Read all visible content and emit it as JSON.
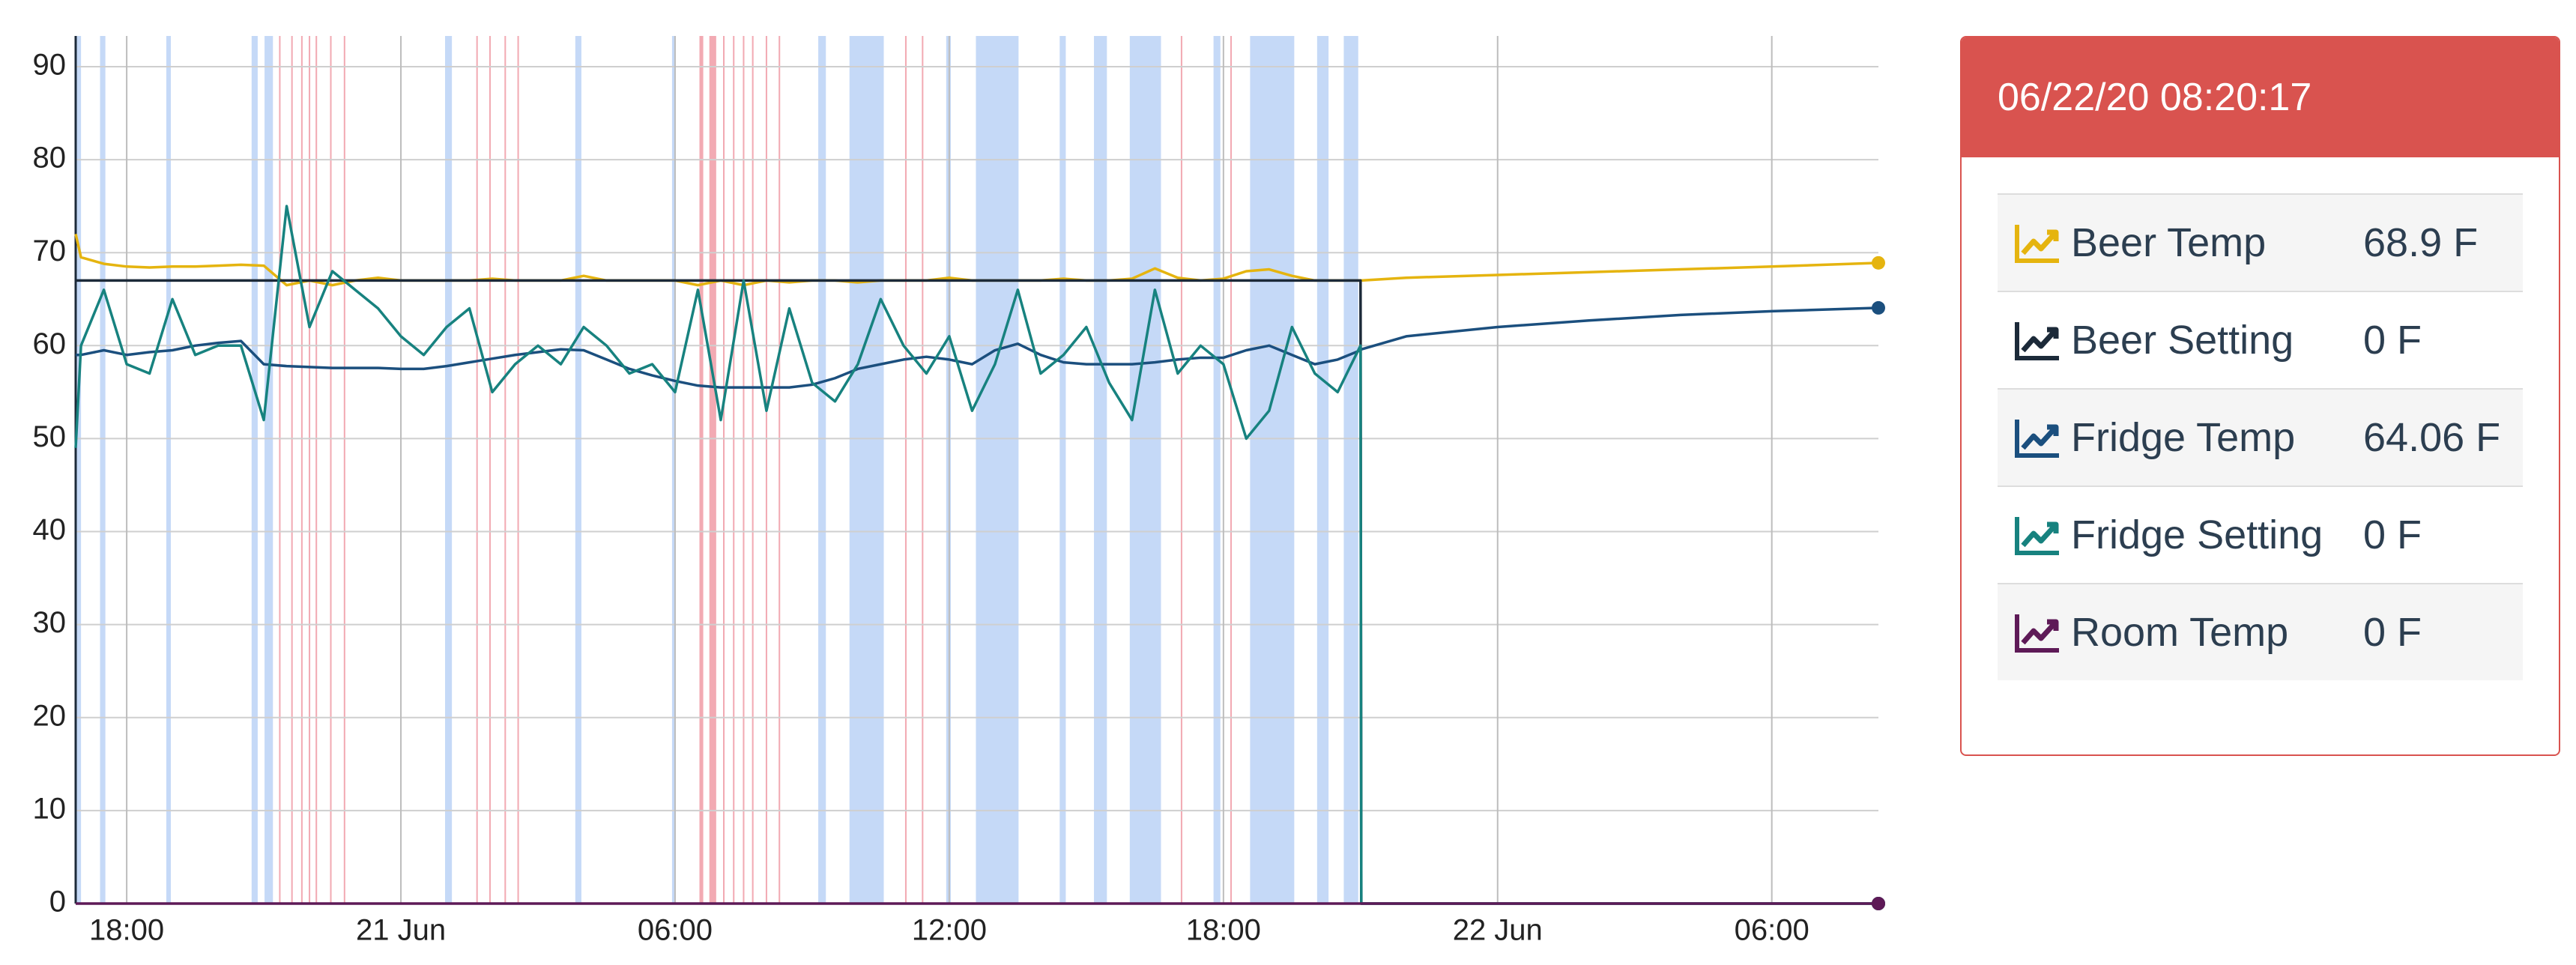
{
  "chart_data": {
    "type": "line",
    "x": [
      "20 Jun 16:53",
      "20 Jun 17:00",
      "20 Jun 17:30",
      "20 Jun 18:00",
      "20 Jun 18:30",
      "20 Jun 19:00",
      "20 Jun 19:30",
      "20 Jun 20:00",
      "20 Jun 20:30",
      "20 Jun 21:00",
      "20 Jun 21:30",
      "20 Jun 22:00",
      "20 Jun 22:30",
      "20 Jun 23:00",
      "20 Jun 23:30",
      "21 Jun 00:00",
      "21 Jun 00:30",
      "21 Jun 01:00",
      "21 Jun 01:30",
      "21 Jun 02:00",
      "21 Jun 02:30",
      "21 Jun 03:00",
      "21 Jun 03:30",
      "21 Jun 04:00",
      "21 Jun 04:30",
      "21 Jun 05:00",
      "21 Jun 05:30",
      "21 Jun 06:00",
      "21 Jun 06:30",
      "21 Jun 07:00",
      "21 Jun 07:30",
      "21 Jun 08:00",
      "21 Jun 08:30",
      "21 Jun 09:00",
      "21 Jun 09:30",
      "21 Jun 10:00",
      "21 Jun 10:30",
      "21 Jun 11:00",
      "21 Jun 11:30",
      "21 Jun 12:00",
      "21 Jun 12:30",
      "21 Jun 13:00",
      "21 Jun 13:30",
      "21 Jun 14:00",
      "21 Jun 14:30",
      "21 Jun 15:00",
      "21 Jun 15:30",
      "21 Jun 16:00",
      "21 Jun 16:30",
      "21 Jun 17:00",
      "21 Jun 17:30",
      "21 Jun 18:00",
      "21 Jun 18:30",
      "21 Jun 19:00",
      "21 Jun 19:30",
      "21 Jun 20:00",
      "21 Jun 20:30",
      "21 Jun 21:00",
      "21 Jun 21:01",
      "21 Jun 22:00",
      "22 Jun 00:00",
      "22 Jun 02:00",
      "22 Jun 04:00",
      "22 Jun 06:00",
      "22 Jun 08:20"
    ],
    "series": [
      {
        "name": "Beer Temp",
        "color": "#e5b40f",
        "values": [
          72,
          69.5,
          68.8,
          68.5,
          68.4,
          68.5,
          68.5,
          68.6,
          68.7,
          68.6,
          66.5,
          67,
          66.5,
          67,
          67.3,
          67,
          67,
          67,
          67,
          67.2,
          67,
          67,
          67,
          67.5,
          67,
          67,
          67,
          67,
          66.5,
          67,
          66.5,
          67,
          66.8,
          67,
          67,
          66.8,
          67,
          67,
          67,
          67.3,
          67,
          67,
          67,
          67,
          67.2,
          67,
          67,
          67.2,
          68.3,
          67.3,
          67,
          67.2,
          68,
          68.2,
          67.5,
          67,
          67,
          67,
          67,
          67.3,
          67.6,
          67.9,
          68.2,
          68.5,
          68.9
        ]
      },
      {
        "name": "Beer Setting",
        "color": "#1c2a39",
        "values": [
          67,
          67,
          67,
          67,
          67,
          67,
          67,
          67,
          67,
          67,
          67,
          67,
          67,
          67,
          67,
          67,
          67,
          67,
          67,
          67,
          67,
          67,
          67,
          67,
          67,
          67,
          67,
          67,
          67,
          67,
          67,
          67,
          67,
          67,
          67,
          67,
          67,
          67,
          67,
          67,
          67,
          67,
          67,
          67,
          67,
          67,
          67,
          67,
          67,
          67,
          67,
          67,
          67,
          67,
          67,
          67,
          67,
          67,
          0,
          0,
          0,
          0,
          0,
          0,
          0
        ]
      },
      {
        "name": "Fridge Temp",
        "color": "#1b4f7e",
        "values": [
          59,
          59,
          59.5,
          59,
          59.3,
          59.5,
          60,
          60.3,
          60.5,
          58,
          57.8,
          57.7,
          57.6,
          57.6,
          57.6,
          57.5,
          57.5,
          57.8,
          58.2,
          58.6,
          59,
          59.3,
          59.6,
          59.5,
          58.5,
          57.5,
          56.8,
          56.2,
          55.7,
          55.5,
          55.5,
          55.5,
          55.5,
          55.8,
          56.5,
          57.5,
          58,
          58.5,
          58.8,
          58.5,
          58,
          59.5,
          60.2,
          59,
          58.2,
          58,
          58,
          58,
          58.2,
          58.5,
          58.7,
          58.7,
          59.5,
          60,
          59,
          58,
          58.5,
          59.5,
          59.6,
          61,
          62,
          62.7,
          63.3,
          63.7,
          64.06
        ]
      },
      {
        "name": "Fridge Setting",
        "color": "#17827f",
        "values": [
          49,
          60,
          66,
          58,
          57,
          65,
          59,
          60,
          60,
          52,
          75,
          62,
          68,
          66,
          64,
          61,
          59,
          62,
          64,
          55,
          58,
          60,
          58,
          62,
          60,
          57,
          58,
          55,
          66,
          52,
          67,
          53,
          64,
          56,
          54,
          58,
          65,
          60,
          57,
          61,
          53,
          58,
          66,
          57,
          59,
          62,
          56,
          52,
          66,
          57,
          60,
          58,
          50,
          53,
          62,
          57,
          55,
          60,
          0,
          0,
          0,
          0,
          0,
          0,
          0
        ]
      },
      {
        "name": "Room Temp",
        "color": "#5e1a57",
        "values": [
          0,
          0,
          0,
          0,
          0,
          0,
          0,
          0,
          0,
          0,
          0,
          0,
          0,
          0,
          0,
          0,
          0,
          0,
          0,
          0,
          0,
          0,
          0,
          0,
          0,
          0,
          0,
          0,
          0,
          0,
          0,
          0,
          0,
          0,
          0,
          0,
          0,
          0,
          0,
          0,
          0,
          0,
          0,
          0,
          0,
          0,
          0,
          0,
          0,
          0,
          0,
          0,
          0,
          0,
          0,
          0,
          0,
          0,
          0,
          0,
          0,
          0,
          0,
          0,
          0
        ]
      }
    ],
    "xlim": [
      "20 Jun 16:53",
      "22 Jun 08:20"
    ],
    "xticks": [
      {
        "value": "20 Jun 18:00",
        "label": "18:00"
      },
      {
        "value": "21 Jun 00:00",
        "label": "21 Jun"
      },
      {
        "value": "21 Jun 06:00",
        "label": "06:00"
      },
      {
        "value": "21 Jun 12:00",
        "label": "12:00"
      },
      {
        "value": "21 Jun 18:00",
        "label": "18:00"
      },
      {
        "value": "22 Jun 00:00",
        "label": "22 Jun"
      },
      {
        "value": "22 Jun 06:00",
        "label": "06:00"
      }
    ],
    "ylim": [
      0,
      93.3
    ],
    "yticks": [
      0,
      10,
      20,
      30,
      40,
      50,
      60,
      70,
      80,
      90
    ],
    "grid": true,
    "cooling_color": "#c5d9f7",
    "heating_color": "#f2aab3",
    "cooling": [
      [
        "20 Jun 16:53",
        "20 Jun 17:00"
      ],
      [
        "20 Jun 17:25",
        "20 Jun 17:32"
      ],
      [
        "20 Jun 18:52",
        "20 Jun 18:58"
      ],
      [
        "20 Jun 20:44",
        "20 Jun 20:52"
      ],
      [
        "20 Jun 21:01",
        "20 Jun 21:12"
      ],
      [
        "21 Jun 00:58",
        "21 Jun 01:07"
      ],
      [
        "21 Jun 03:49",
        "21 Jun 03:57"
      ],
      [
        "21 Jun 05:56",
        "21 Jun 06:00"
      ],
      [
        "21 Jun 09:08",
        "21 Jun 09:18"
      ],
      [
        "21 Jun 09:49",
        "21 Jun 10:34"
      ],
      [
        "21 Jun 11:56",
        "21 Jun 12:02"
      ],
      [
        "21 Jun 12:35",
        "21 Jun 13:31"
      ],
      [
        "21 Jun 14:25",
        "21 Jun 14:33"
      ],
      [
        "21 Jun 15:10",
        "21 Jun 15:27"
      ],
      [
        "21 Jun 15:57",
        "21 Jun 16:38"
      ],
      [
        "21 Jun 17:47",
        "21 Jun 17:56"
      ],
      [
        "21 Jun 18:35",
        "21 Jun 19:33"
      ],
      [
        "21 Jun 20:03",
        "21 Jun 20:18"
      ],
      [
        "21 Jun 20:38",
        "21 Jun 20:57"
      ]
    ],
    "heating": [
      [
        "20 Jun 21:20",
        "20 Jun 21:22"
      ],
      [
        "20 Jun 21:36",
        "20 Jun 21:38"
      ],
      [
        "20 Jun 21:49",
        "20 Jun 21:51"
      ],
      [
        "20 Jun 21:59",
        "20 Jun 22:01"
      ],
      [
        "20 Jun 22:08",
        "20 Jun 22:10"
      ],
      [
        "20 Jun 22:27",
        "20 Jun 22:29"
      ],
      [
        "20 Jun 22:45",
        "20 Jun 22:47"
      ],
      [
        "21 Jun 01:39",
        "21 Jun 01:41"
      ],
      [
        "21 Jun 01:56",
        "21 Jun 01:58"
      ],
      [
        "21 Jun 02:16",
        "21 Jun 02:18"
      ],
      [
        "21 Jun 02:33",
        "21 Jun 02:35"
      ],
      [
        "21 Jun 06:32",
        "21 Jun 06:37"
      ],
      [
        "21 Jun 06:45",
        "21 Jun 06:54"
      ],
      [
        "21 Jun 07:03",
        "21 Jun 07:05"
      ],
      [
        "21 Jun 07:16",
        "21 Jun 07:18"
      ],
      [
        "21 Jun 07:29",
        "21 Jun 07:31"
      ],
      [
        "21 Jun 07:41",
        "21 Jun 07:43"
      ],
      [
        "21 Jun 07:59",
        "21 Jun 08:01"
      ],
      [
        "21 Jun 08:16",
        "21 Jun 08:18"
      ],
      [
        "21 Jun 11:02",
        "21 Jun 11:04"
      ],
      [
        "21 Jun 11:24",
        "21 Jun 11:26"
      ],
      [
        "21 Jun 17:04",
        "21 Jun 17:06"
      ],
      [
        "21 Jun 18:09",
        "21 Jun 18:11"
      ]
    ]
  },
  "panel": {
    "timestamp": "06/22/20 08:20:17",
    "values": [
      "68.9 F",
      "0 F",
      "64.06 F",
      "0 F",
      "0 F"
    ]
  }
}
